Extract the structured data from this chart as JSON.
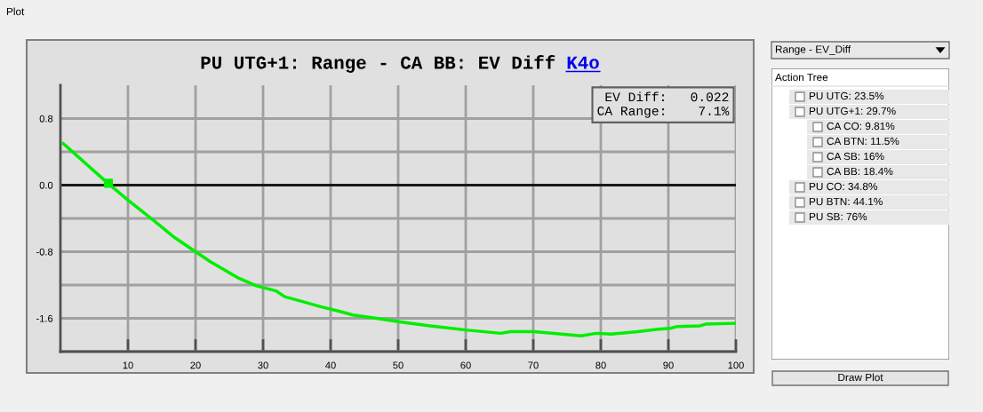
{
  "chart_data": [
    {
      "type": "line",
      "title": "PU UTG+1: Range - CA BB: EV Diff",
      "subtitle": "K4o",
      "x": [
        0.4,
        7.06,
        10,
        13.9,
        16.9,
        20,
        22.2,
        26.2,
        29.0,
        31.9,
        33.2,
        36.3,
        38.5,
        41.5,
        43.3,
        46.8,
        50.0,
        54.7,
        60,
        65.2,
        66.6,
        70.1,
        77.1,
        79.3,
        81.5,
        85.5,
        88.5,
        90.3,
        91.2,
        94.7,
        95.5,
        100
      ],
      "series": [
        {
          "color": "#00ee00",
          "values": [
            0.5,
            0.02,
            -0.18,
            -0.43,
            -0.63,
            -0.8,
            -0.92,
            -1.11,
            -1.21,
            -1.27,
            -1.34,
            -1.41,
            -1.46,
            -1.52,
            -1.56,
            -1.6,
            -1.64,
            -1.69,
            -1.74,
            -1.78,
            -1.76,
            -1.76,
            -1.81,
            -1.78,
            -1.79,
            -1.76,
            -1.73,
            -1.72,
            -1.7,
            -1.69,
            -1.67,
            -1.66
          ]
        },
        {
          "type": "scatter",
          "marker": "square",
          "color": "#00ee00",
          "x": [
            7.1
          ],
          "values": [
            0.022
          ]
        }
      ],
      "xlim": [
        0,
        100
      ],
      "xticks": [
        10,
        20,
        30,
        40,
        50,
        60,
        70,
        80,
        90,
        100
      ],
      "ylim": [
        -2.0,
        1.2
      ],
      "yticks": [
        {
          "value": -2.0,
          "label": null
        },
        {
          "value": -1.6,
          "label": "-1.6"
        },
        {
          "value": -1.2,
          "label": null
        },
        {
          "value": -0.8,
          "label": "-0.8"
        },
        {
          "value": -0.4,
          "label": null
        },
        {
          "value": 0,
          "label": "0.0"
        },
        {
          "value": 0.4,
          "label": null
        },
        {
          "value": 0.8,
          "label": "0.8"
        }
      ],
      "ref_lines": [
        {
          "axis": "y",
          "value": 0,
          "color": "#1a1a1a"
        }
      ],
      "grid": true,
      "annotations": [
        "EV Diff:   0.022",
        "CA Range:    7.1%"
      ]
    },
    {
      "type": "other",
      "title": "Action Tree",
      "annotations": [
        "Plot",
        "Range - EV_Diff",
        "PU UTG: 23.5%",
        "PU UTG+1: 29.7%",
        "CA CO: 9.81%",
        "CA BTN: 11.5%",
        "CA SB: 16%",
        "CA BB: 18.4%",
        "PU CO: 34.8%",
        "PU BTN: 44.1%",
        "PU SB: 76%",
        "Draw Plot"
      ]
    }
  ]
}
